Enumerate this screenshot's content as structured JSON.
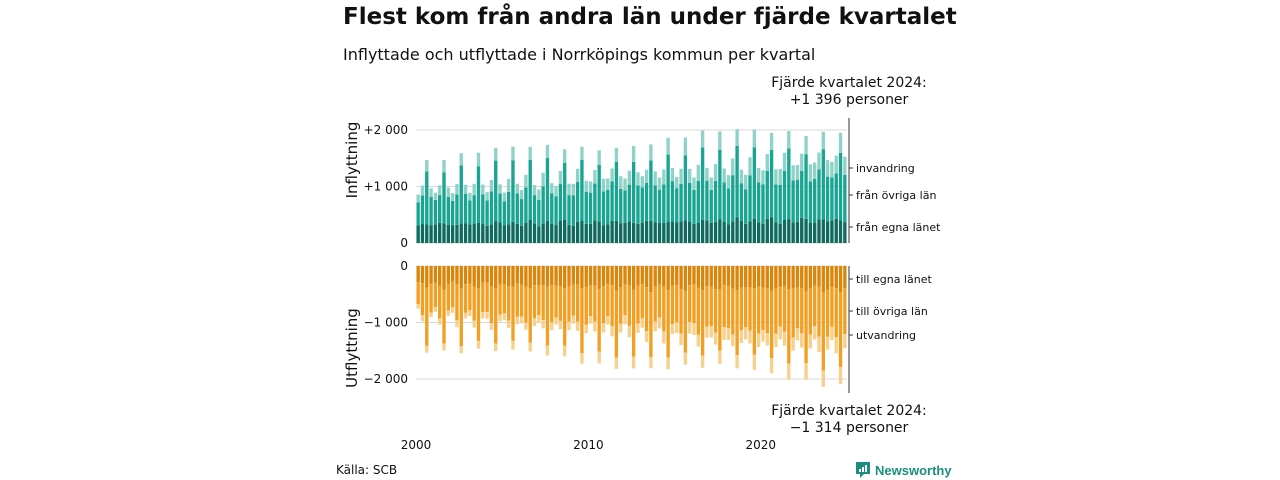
{
  "title": "Flest kom från andra län under fjärde kvartalet",
  "subtitle": "Inflyttade och utflyttade i Norrköpings kommun per kvartal",
  "note_top": [
    "Fjärde kvartalet 2024:",
    "+1 396 personer"
  ],
  "note_bottom": [
    "Fjärde kvartalet 2024:",
    "−1 314 personer"
  ],
  "source": "Källa: SCB",
  "brand": {
    "name": "Newsworthy",
    "icon": "newsworthy-logo-icon",
    "color": "#1a8f7d"
  },
  "colors": {
    "in_egna": "#0f6b5e",
    "in_ovriga": "#1aa593",
    "in_invandring": "#8fd3c8",
    "ut_egna": "#d9860b",
    "ut_ovriga": "#f2a024",
    "ut_utvandring": "#f6d08c",
    "grid": "#d9d9d9",
    "text": "#111111"
  },
  "chart_data": [
    {
      "type": "bar",
      "stacked": true,
      "ylabel": "Inflyttning",
      "ylim": [
        0,
        2250
      ],
      "yticks": [
        0,
        1000,
        2000
      ],
      "ytick_labels": [
        "0",
        "+1 000",
        "+2 000"
      ],
      "series_labels": [
        "invandring",
        "från övriga län",
        "från egna länet"
      ],
      "x_start": "2000 Q1",
      "x_end": "2024 Q4",
      "quarter_pattern": {
        "egna": [
          300,
          340,
          360,
          320
        ],
        "ovriga": [
          400,
          520,
          950,
          460
        ],
        "invandring": [
          130,
          180,
          200,
          150
        ]
      },
      "annual_trend": {
        "egna": 3,
        "ovriga": 14,
        "invandring": 6
      }
    },
    {
      "type": "bar",
      "stacked": true,
      "ylabel": "Utflyttning",
      "ylim": [
        -2250,
        0
      ],
      "yticks": [
        0,
        -1000,
        -2000
      ],
      "ytick_labels": [
        "0",
        "−1 000",
        "−2 000"
      ],
      "series_labels": [
        "till egna länet",
        "till övriga län",
        "utvandring"
      ],
      "x_start": "2000 Q1",
      "x_end": "2024 Q4",
      "quarter_pattern": {
        "egna": [
          300,
          330,
          380,
          320
        ],
        "ovriga": [
          430,
          550,
          950,
          500
        ],
        "utvandring": [
          80,
          100,
          120,
          90
        ]
      },
      "annual_trend": {
        "egna": 3,
        "ovriga": 14,
        "utvandring": 7
      }
    }
  ],
  "x_axis": {
    "ticks": [
      2000,
      2010,
      2020
    ],
    "tick_labels": [
      "2000",
      "2010",
      "2020"
    ]
  }
}
